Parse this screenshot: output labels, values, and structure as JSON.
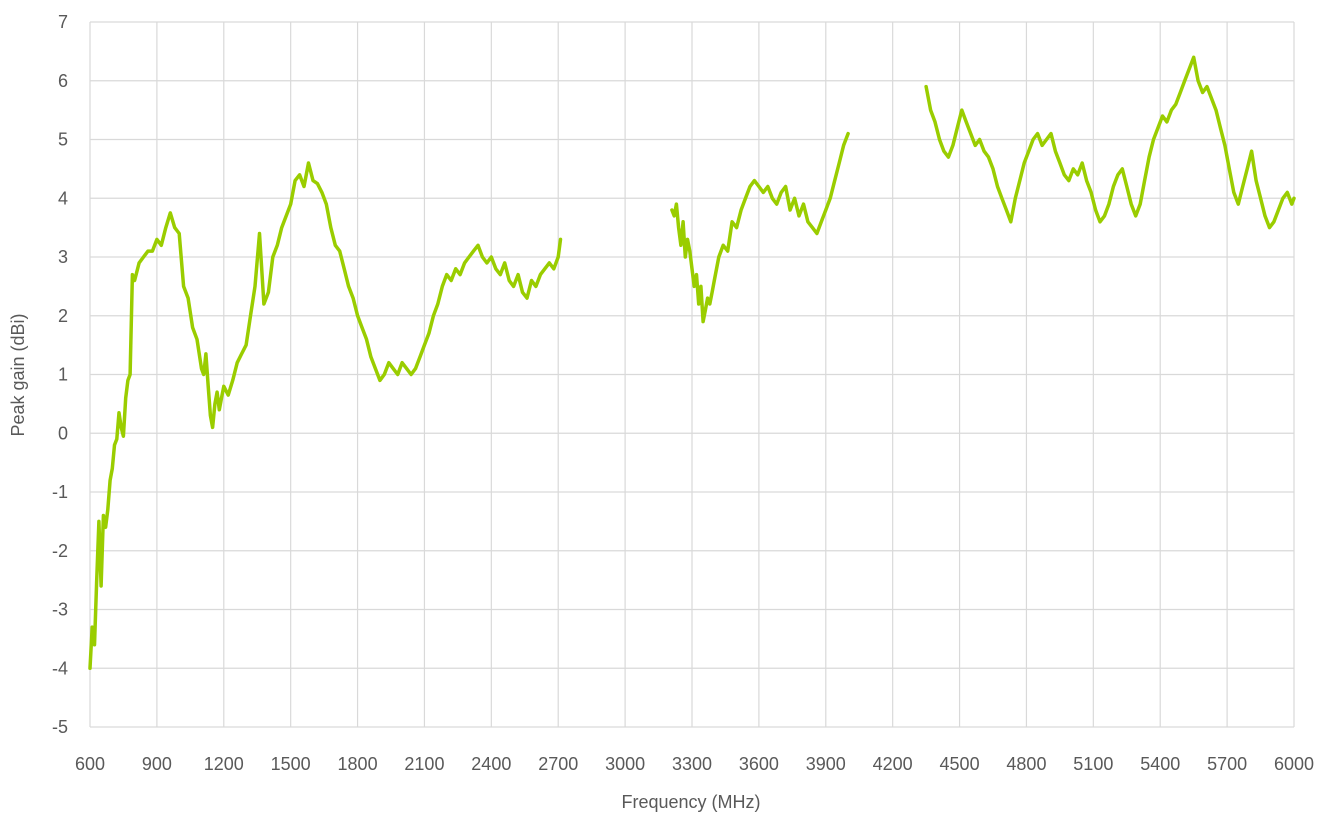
{
  "chart_data": {
    "type": "line",
    "title": "",
    "xlabel": "Frequency (MHz)",
    "ylabel": "Peak gain (dBi)",
    "xlim": [
      600,
      6000
    ],
    "ylim": [
      -5,
      7
    ],
    "x_ticks": [
      600,
      900,
      1200,
      1500,
      1800,
      2100,
      2400,
      2700,
      3000,
      3300,
      3600,
      3900,
      4200,
      4500,
      4800,
      5100,
      5400,
      5700,
      6000
    ],
    "y_ticks": [
      -5,
      -4,
      -3,
      -2,
      -1,
      0,
      1,
      2,
      3,
      4,
      5,
      6,
      7
    ],
    "x_tick_labels": [
      "600",
      "900",
      "1200",
      "1500",
      "1800",
      "2100",
      "2400",
      "2700",
      "3000",
      "3300",
      "3600",
      "3900",
      "4200",
      "4500",
      "4800",
      "5100",
      "5400",
      "5700",
      "6000"
    ],
    "y_tick_labels": [
      "-5",
      "-4",
      "-3",
      "-2",
      "-1",
      "0",
      "1",
      "2",
      "3",
      "4",
      "5",
      "6",
      "7"
    ],
    "grid": true,
    "legend": "none",
    "line_color": "#9ACD00",
    "grid_color": "#D9D9D9",
    "series": [
      {
        "segments": [
          {
            "x": [
              600,
              610,
              620,
              630,
              640,
              650,
              660,
              670,
              680,
              690,
              700,
              710,
              720,
              730,
              740,
              750,
              760,
              770,
              780,
              790,
              800,
              820,
              840,
              860,
              880,
              900,
              920,
              940,
              960,
              980,
              1000,
              1020,
              1040,
              1060,
              1080,
              1100,
              1110,
              1120,
              1130,
              1140,
              1150,
              1160,
              1170,
              1180,
              1190,
              1200,
              1220,
              1240,
              1260,
              1280,
              1300,
              1320,
              1340,
              1360,
              1380,
              1400,
              1420,
              1440,
              1460,
              1480,
              1500,
              1520,
              1540,
              1560,
              1580,
              1600,
              1620,
              1640,
              1660,
              1680,
              1700,
              1720,
              1740,
              1760,
              1780,
              1800,
              1820,
              1840,
              1860,
              1880,
              1900,
              1920,
              1940,
              1960,
              1980,
              2000,
              2020,
              2040,
              2060,
              2080,
              2100,
              2120,
              2140,
              2160,
              2180,
              2200,
              2220,
              2240,
              2260,
              2280,
              2300,
              2320,
              2340,
              2360,
              2380,
              2400,
              2420,
              2440,
              2460,
              2480,
              2500,
              2520,
              2540,
              2560,
              2580,
              2600,
              2620,
              2640,
              2660,
              2680,
              2700,
              2710
            ],
            "y": [
              -4.0,
              -3.3,
              -3.6,
              -2.5,
              -1.5,
              -2.6,
              -1.4,
              -1.6,
              -1.3,
              -0.8,
              -0.6,
              -0.2,
              -0.1,
              0.35,
              0.1,
              -0.05,
              0.6,
              0.9,
              1.0,
              2.7,
              2.6,
              2.9,
              3.0,
              3.1,
              3.1,
              3.3,
              3.2,
              3.5,
              3.75,
              3.5,
              3.4,
              2.5,
              2.3,
              1.8,
              1.6,
              1.1,
              1.0,
              1.35,
              0.8,
              0.3,
              0.1,
              0.5,
              0.7,
              0.4,
              0.6,
              0.8,
              0.65,
              0.9,
              1.2,
              1.35,
              1.5,
              2.0,
              2.5,
              3.4,
              2.2,
              2.4,
              3.0,
              3.2,
              3.5,
              3.7,
              3.9,
              4.3,
              4.4,
              4.2,
              4.6,
              4.3,
              4.25,
              4.1,
              3.9,
              3.5,
              3.2,
              3.1,
              2.8,
              2.5,
              2.3,
              2.0,
              1.8,
              1.6,
              1.3,
              1.1,
              0.9,
              1.0,
              1.2,
              1.1,
              1.0,
              1.2,
              1.1,
              1.0,
              1.1,
              1.3,
              1.5,
              1.7,
              2.0,
              2.2,
              2.5,
              2.7,
              2.6,
              2.8,
              2.7,
              2.9,
              3.0,
              3.1,
              3.2,
              3.0,
              2.9,
              3.0,
              2.8,
              2.7,
              2.9,
              2.6,
              2.5,
              2.7,
              2.4,
              2.3,
              2.6,
              2.5,
              2.7,
              2.8,
              2.9,
              2.8,
              3.0,
              3.3
            ]
          },
          {
            "x": [
              3210,
              3220,
              3230,
              3240,
              3250,
              3260,
              3270,
              3280,
              3290,
              3300,
              3310,
              3320,
              3330,
              3340,
              3350,
              3360,
              3370,
              3380,
              3390,
              3400,
              3420,
              3440,
              3460,
              3480,
              3500,
              3520,
              3540,
              3560,
              3580,
              3600,
              3620,
              3640,
              3660,
              3680,
              3700,
              3720,
              3740,
              3760,
              3780,
              3800,
              3820,
              3840,
              3860,
              3880,
              3900,
              3920,
              3940,
              3960,
              3980,
              4000
            ],
            "y": [
              3.8,
              3.7,
              3.9,
              3.5,
              3.2,
              3.6,
              3.0,
              3.3,
              3.1,
              2.8,
              2.5,
              2.7,
              2.2,
              2.5,
              1.9,
              2.1,
              2.3,
              2.2,
              2.4,
              2.6,
              3.0,
              3.2,
              3.1,
              3.6,
              3.5,
              3.8,
              4.0,
              4.2,
              4.3,
              4.2,
              4.1,
              4.2,
              4.0,
              3.9,
              4.1,
              4.2,
              3.8,
              4.0,
              3.7,
              3.9,
              3.6,
              3.5,
              3.4,
              3.6,
              3.8,
              4.0,
              4.3,
              4.6,
              4.9,
              5.1
            ]
          },
          {
            "x": [
              4350,
              4370,
              4390,
              4410,
              4430,
              4450,
              4470,
              4490,
              4510,
              4530,
              4550,
              4570,
              4590,
              4610,
              4630,
              4650,
              4670,
              4690,
              4710,
              4730,
              4750,
              4770,
              4790,
              4810,
              4830,
              4850,
              4870,
              4890,
              4910,
              4930,
              4950,
              4970,
              4990,
              5010,
              5030,
              5050,
              5070,
              5090,
              5110,
              5130,
              5150,
              5170,
              5190,
              5210,
              5230,
              5250,
              5270,
              5290,
              5310,
              5330,
              5350,
              5370,
              5390,
              5410,
              5430,
              5450,
              5470,
              5490,
              5510,
              5530,
              5550,
              5570,
              5590,
              5610,
              5630,
              5650,
              5670,
              5690,
              5710,
              5730,
              5750,
              5770,
              5790,
              5810,
              5830,
              5850,
              5870,
              5890,
              5910,
              5930,
              5950,
              5970,
              5990,
              6000
            ],
            "y": [
              5.9,
              5.5,
              5.3,
              5.0,
              4.8,
              4.7,
              4.9,
              5.2,
              5.5,
              5.3,
              5.1,
              4.9,
              5.0,
              4.8,
              4.7,
              4.5,
              4.2,
              4.0,
              3.8,
              3.6,
              4.0,
              4.3,
              4.6,
              4.8,
              5.0,
              5.1,
              4.9,
              5.0,
              5.1,
              4.8,
              4.6,
              4.4,
              4.3,
              4.5,
              4.4,
              4.6,
              4.3,
              4.1,
              3.8,
              3.6,
              3.7,
              3.9,
              4.2,
              4.4,
              4.5,
              4.2,
              3.9,
              3.7,
              3.9,
              4.3,
              4.7,
              5.0,
              5.2,
              5.4,
              5.3,
              5.5,
              5.6,
              5.8,
              6.0,
              6.2,
              6.4,
              6.0,
              5.8,
              5.9,
              5.7,
              5.5,
              5.2,
              4.9,
              4.5,
              4.1,
              3.9,
              4.2,
              4.5,
              4.8,
              4.3,
              4.0,
              3.7,
              3.5,
              3.6,
              3.8,
              4.0,
              4.1,
              3.9,
              4.0
            ]
          }
        ]
      }
    ]
  }
}
